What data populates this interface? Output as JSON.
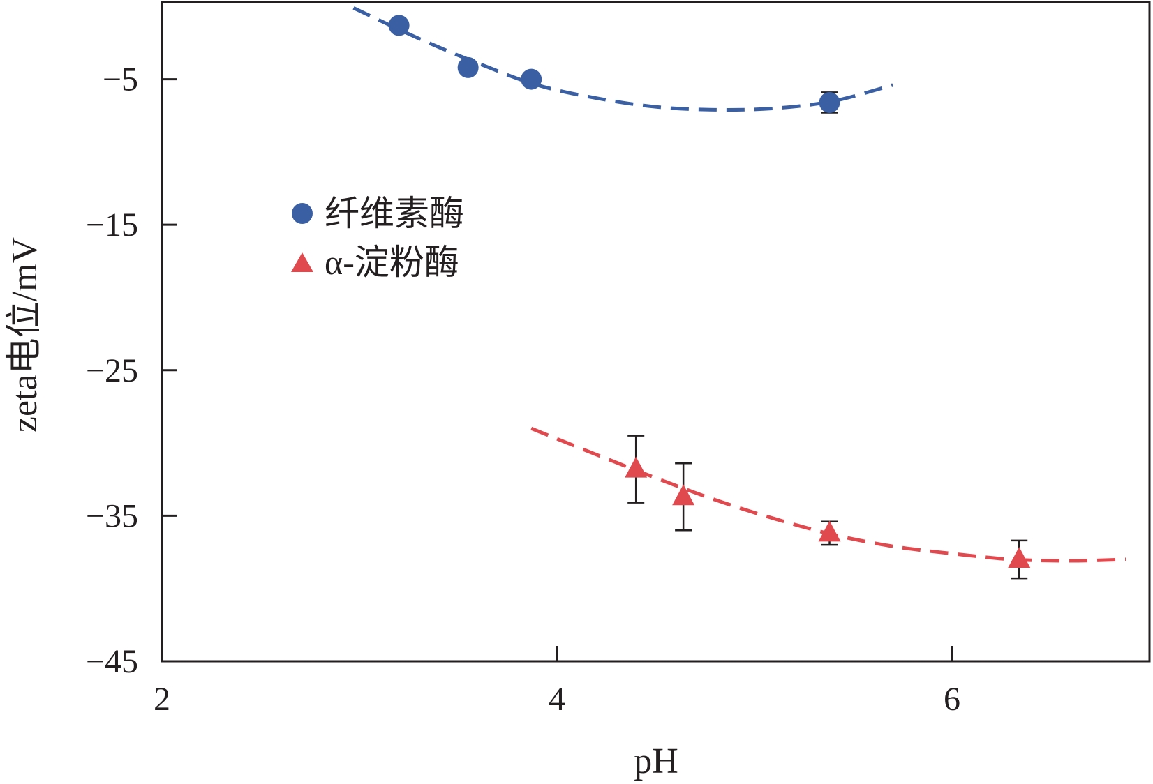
{
  "chart_data": {
    "type": "scatter",
    "title": "",
    "xlabel": "pH",
    "ylabel": "zeta电位/mV",
    "xlim": [
      2,
      7.0
    ],
    "ylim": [
      -45,
      0.3
    ],
    "xticks": [
      2,
      4,
      6
    ],
    "xtick_labels": [
      "2",
      "4",
      "6"
    ],
    "yticks": [
      -5,
      -15,
      -25,
      -35,
      -45
    ],
    "ytick_labels": [
      "−5",
      "−15",
      "−25",
      "−35",
      "−45"
    ],
    "legend_position": "upper-left",
    "series": [
      {
        "name": "纤维素酶",
        "marker": "circle",
        "color": "#3a5fa3",
        "points": [
          {
            "x": 3.2,
            "y": -1.3
          },
          {
            "x": 3.55,
            "y": -4.2
          },
          {
            "x": 3.87,
            "y": -5.0
          },
          {
            "x": 5.38,
            "y": -6.6,
            "err": 0.7
          }
        ],
        "fit": {
          "x": [
            2.97,
            3.3,
            3.6,
            3.9,
            4.2,
            4.5,
            4.8,
            5.1,
            5.4,
            5.7
          ],
          "y": [
            -0.1,
            -2.2,
            -3.9,
            -5.4,
            -6.3,
            -6.9,
            -7.1,
            -7.0,
            -6.5,
            -5.4
          ]
        }
      },
      {
        "name": "α-淀粉酶",
        "marker": "triangle",
        "color": "#e04a4f",
        "points": [
          {
            "x": 4.4,
            "y": -31.8,
            "err": 2.3
          },
          {
            "x": 4.64,
            "y": -33.7,
            "err": 2.3
          },
          {
            "x": 5.38,
            "y": -36.2,
            "err": 0.8
          },
          {
            "x": 6.34,
            "y": -38.0,
            "err": 1.3
          }
        ],
        "fit": {
          "x": [
            3.87,
            4.2,
            4.5,
            4.8,
            5.1,
            5.4,
            5.7,
            6.0,
            6.3,
            6.6,
            6.88
          ],
          "y": [
            -29.0,
            -30.8,
            -32.4,
            -33.9,
            -35.2,
            -36.3,
            -37.1,
            -37.6,
            -38.0,
            -38.1,
            -38.0
          ]
        }
      }
    ]
  }
}
